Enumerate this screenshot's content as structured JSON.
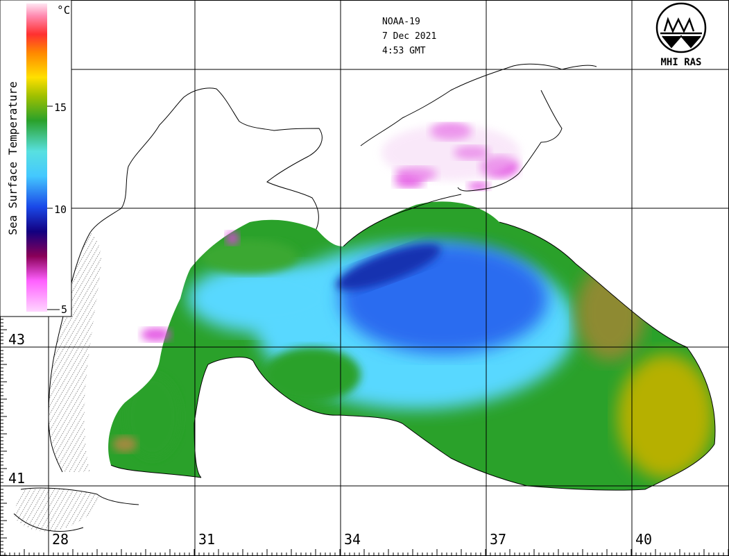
{
  "header": {
    "satellite": "NOAA-19",
    "date": "7 Dec 2021",
    "time": "4:53 GMT"
  },
  "logo": {
    "text": "MHI RAS"
  },
  "legend": {
    "title": "Sea Surface Temperature",
    "unit": "°C",
    "ticks": [
      "15",
      "10",
      "5"
    ],
    "colors": [
      "#ffe6f2",
      "#ff4aa0",
      "#ff3030",
      "#ff8800",
      "#ffe000",
      "#cfd600",
      "#2aa12a",
      "#58e0ff",
      "#1a48e8",
      "#120080",
      "#5a0030",
      "#b000b0",
      "#ffd6ff"
    ]
  },
  "axes": {
    "latitude_labels": [
      "43",
      "41"
    ],
    "longitude_labels": [
      "28",
      "31",
      "34",
      "37",
      "40"
    ]
  },
  "colors": {
    "land": "#ffffff",
    "coastline": "#000000",
    "grid": "#000000",
    "sst_warm": "#2aa12a",
    "sst_cool": "#58d8ff",
    "sst_cold": "#1a48e8",
    "sst_hot": "#b6b000",
    "cloud_mask": "#e040e0"
  }
}
